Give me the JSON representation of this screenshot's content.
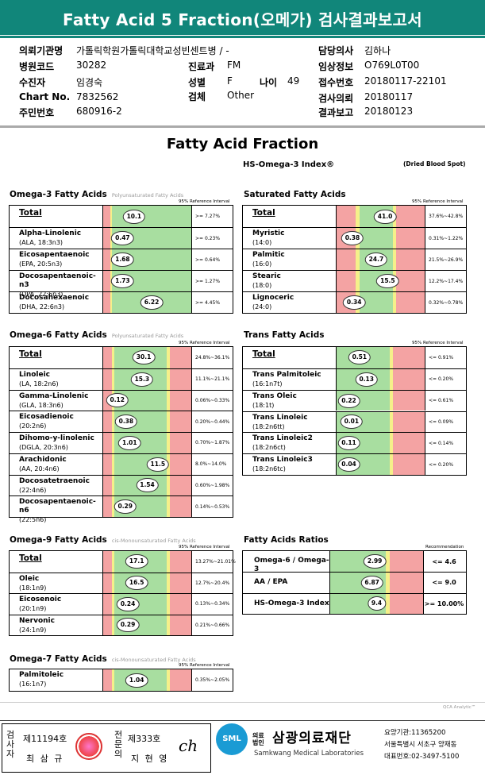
{
  "header": {
    "title": "Fatty Acid 5 Fraction(오메가) 검사결과보고서"
  },
  "patient": {
    "inst_label": "의뢰기관명",
    "inst_value": "가톨릭학원가톨릭대학교성빈센트병 / -",
    "code_label": "병원코드",
    "code_value": "30282",
    "dept_label": "진료과",
    "dept_value": "FM",
    "name_label": "수진자",
    "name_value": "임경숙",
    "sex_label": "성별",
    "sex_value": "F",
    "age_label": "나이",
    "age_value": "49",
    "chart_label": "Chart No.",
    "chart_value": "7832562",
    "spec_label": "검체",
    "spec_value": "Other",
    "rrn_label": "주민번호",
    "rrn_value": "680916-2",
    "doctor_label": "담당의사",
    "doctor_value": "김하나",
    "clin_label": "임상정보",
    "clin_value": "O769L0T00",
    "recv_label": "접수번호",
    "recv_value": "20180117-22101",
    "req_label": "검사의뢰",
    "req_value": "20180117",
    "rep_label": "결과보고",
    "rep_value": "20180123"
  },
  "report": {
    "title": "Fatty Acid Fraction",
    "index": "HS-Omega-3 Index®",
    "sample": "(Dried Blood Spot)",
    "ref_label": "95% Reference Interval",
    "rec_label": "Recommendation"
  },
  "omega3": {
    "title": "Omega-3 Fatty Acids",
    "note": "Polyunsaturated Fatty Acids",
    "rows": [
      {
        "name": "Total",
        "sub": "",
        "value": "10.1",
        "range": ">= 7.27%"
      },
      {
        "name": "Alpha-Linolenic",
        "sub": "(ALA, 18:3n3)",
        "value": "0.47",
        "range": ">= 0.23%"
      },
      {
        "name": "Eicosapentaenoic",
        "sub": "(EPA, 20:5n3)",
        "value": "1.68",
        "range": ">= 0.64%"
      },
      {
        "name": "Docosapentaenoic-n3",
        "sub": "(DPA, 22:5n3)",
        "value": "1.73",
        "range": ">= 1.27%"
      },
      {
        "name": "Docosahexaenoic",
        "sub": "(DHA, 22:6n3)",
        "value": "6.22",
        "range": ">= 4.45%"
      }
    ]
  },
  "omega6": {
    "title": "Omega-6 Fatty Acids",
    "note": "Polyunsaturated Fatty Acids",
    "rows": [
      {
        "name": "Total",
        "sub": "",
        "value": "30.1",
        "range": "24.8%~36.1%"
      },
      {
        "name": "Linoleic",
        "sub": "(LA, 18:2n6)",
        "value": "15.3",
        "range": "11.1%~21.1%"
      },
      {
        "name": "Gamma-Linolenic",
        "sub": "(GLA, 18:3n6)",
        "value": "0.12",
        "range": "0.06%~0.33%"
      },
      {
        "name": "Eicosadienoic",
        "sub": "(20:2n6)",
        "value": "0.38",
        "range": "0.20%~0.44%"
      },
      {
        "name": "Dihomo-y-linolenic",
        "sub": "(DGLA, 20:3n6)",
        "value": "1.01",
        "range": "0.70%~1.87%"
      },
      {
        "name": "Arachidonic",
        "sub": "(AA, 20:4n6)",
        "value": "11.5",
        "range": "8.0%~14.0%"
      },
      {
        "name": "Docosatetraenoic",
        "sub": "(22:4n6)",
        "value": "1.54",
        "range": "0.60%~1.98%"
      },
      {
        "name": "Docosapentaenoic-n6",
        "sub": "(22:5n6)",
        "value": "0.29",
        "range": "0.14%~0.53%"
      }
    ]
  },
  "omega9": {
    "title": "Omega-9 Fatty Acids",
    "note": "cis-Monounsaturated Fatty Acids",
    "rows": [
      {
        "name": "Total",
        "sub": "",
        "value": "17.1",
        "range": "13.27%~21.01%"
      },
      {
        "name": "Oleic",
        "sub": "(18:1n9)",
        "value": "16.5",
        "range": "12.7%~20.4%"
      },
      {
        "name": "Eicosenoic",
        "sub": "(20:1n9)",
        "value": "0.24",
        "range": "0.13%~0.34%"
      },
      {
        "name": "Nervonic",
        "sub": "(24:1n9)",
        "value": "0.29",
        "range": "0.21%~0.66%"
      }
    ]
  },
  "omega7": {
    "title": "Omega-7 Fatty Acids",
    "note": "cis-Monounsaturated Fatty Acids",
    "rows": [
      {
        "name": "Palmitoleic",
        "sub": "(16:1n7)",
        "value": "1.04",
        "range": "0.35%~2.05%"
      }
    ]
  },
  "saturated": {
    "title": "Saturated Fatty Acids",
    "rows": [
      {
        "name": "Total",
        "sub": "",
        "value": "41.0",
        "range": "37.6%~42.8%"
      },
      {
        "name": "Myristic",
        "sub": "(14:0)",
        "value": "0.38",
        "range": "0.31%~1.22%"
      },
      {
        "name": "Palmitic",
        "sub": "(16:0)",
        "value": "24.7",
        "range": "21.5%~26.9%"
      },
      {
        "name": "Stearic",
        "sub": "(18:0)",
        "value": "15.5",
        "range": "12.2%~17.4%"
      },
      {
        "name": "Lignoceric",
        "sub": "(24:0)",
        "value": "0.34",
        "range": "0.32%~0.78%"
      }
    ]
  },
  "trans": {
    "title": "Trans Fatty Acids",
    "rows": [
      {
        "name": "Total",
        "sub": "",
        "value": "0.51",
        "range": "<= 0.91%"
      },
      {
        "name": "Trans Palmitoleic",
        "sub": "(16:1n7t)",
        "value": "0.13",
        "range": "<= 0.20%"
      },
      {
        "name": "Trans Oleic",
        "sub": "(18:1t)",
        "value": "0.22",
        "range": "<= 0.61%"
      },
      {
        "name": "Trans Linoleic",
        "sub": "(18:2n6tt)",
        "value": "0.01",
        "range": "<= 0.09%"
      },
      {
        "name": "Trans Linoleic2",
        "sub": "(18:2n6ct)",
        "value": "0.11",
        "range": "<= 0.14%"
      },
      {
        "name": "Trans Linoleic3",
        "sub": "(18:2n6tc)",
        "value": "0.04",
        "range": "<= 0.20%"
      }
    ]
  },
  "ratios": {
    "title": "Fatty Acids Ratios",
    "rows": [
      {
        "name": "Omega-6 / Omega-3",
        "value": "2.99",
        "range": "<= 4.6"
      },
      {
        "name": "AA / EPA",
        "value": "6.87",
        "range": "<= 9.0"
      },
      {
        "name": "HS-Omega-3 Index",
        "value": "9.4",
        "range": ">= 10.00%"
      }
    ]
  },
  "footer": {
    "v1": "검사자",
    "num1": "제11194호",
    "name1": "최 삼 규",
    "v2": "전문의",
    "num2": "제333호",
    "name2": "지 현 영",
    "logo": "SML",
    "org_small": "의료법인",
    "org": "삼광의료재단",
    "org_en": "Samkwang Medical Laboratories",
    "addr1": "요양기관:11365200",
    "addr2": "서울특별시 서초구 양재동",
    "addr3": "대표번호:02-3497-5100",
    "cut": "QCA Analytic™"
  }
}
